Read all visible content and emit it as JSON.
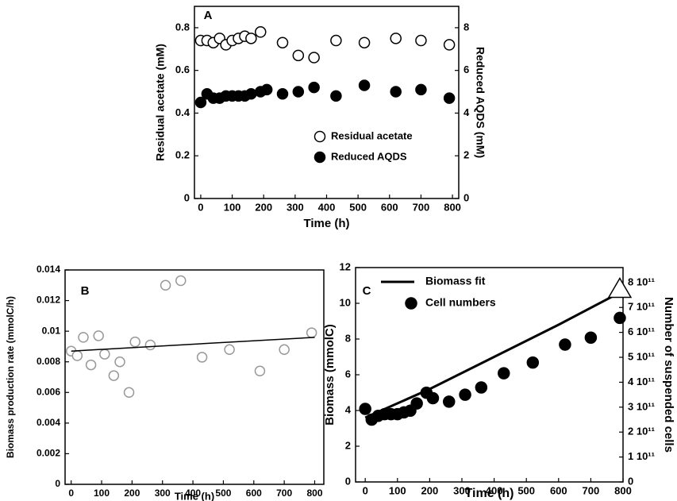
{
  "chart_data": [
    {
      "type": "scatter",
      "label": "A",
      "xlabel": "Time (h)",
      "ylabel": "Residual acetate (mM)",
      "y2label": "Reduced AQDS (mM)",
      "xlim": [
        -20,
        820
      ],
      "xticks": [
        0,
        100,
        200,
        300,
        400,
        500,
        600,
        700,
        800
      ],
      "ylim": [
        0,
        0.9
      ],
      "yticks": [
        0,
        0.2,
        0.4,
        0.6,
        0.8
      ],
      "y2lim": [
        0,
        9
      ],
      "y2ticks": [
        0,
        2,
        4,
        6,
        8
      ],
      "series": [
        {
          "name": "Residual acetate",
          "marker": "open",
          "color": "#000000",
          "x": [
            0,
            20,
            40,
            60,
            80,
            100,
            120,
            140,
            160,
            190,
            260,
            310,
            360,
            430,
            520,
            620,
            700,
            790
          ],
          "values": [
            0.74,
            0.74,
            0.73,
            0.75,
            0.72,
            0.74,
            0.75,
            0.76,
            0.75,
            0.78,
            0.73,
            0.67,
            0.66,
            0.74,
            0.73,
            0.75,
            0.74,
            0.72
          ]
        },
        {
          "name": "Reduced AQDS",
          "marker": "filled",
          "color": "#000000",
          "axis": "y2",
          "x": [
            0,
            20,
            40,
            60,
            80,
            100,
            120,
            140,
            160,
            190,
            210,
            260,
            310,
            360,
            430,
            520,
            620,
            700,
            790
          ],
          "values": [
            4.5,
            4.9,
            4.7,
            4.7,
            4.8,
            4.8,
            4.8,
            4.8,
            4.9,
            5.0,
            5.1,
            4.9,
            5.0,
            5.2,
            4.8,
            5.3,
            5.0,
            5.1,
            4.7
          ]
        }
      ]
    },
    {
      "type": "scatter",
      "label": "B",
      "xlabel": "Time (h)",
      "ylabel": "Biomass production rate (mmolC/h)",
      "xlim": [
        -20,
        830
      ],
      "xticks": [
        0,
        100,
        200,
        300,
        400,
        500,
        600,
        700,
        800
      ],
      "ylim": [
        0,
        0.014
      ],
      "yticks": [
        0,
        0.002,
        0.004,
        0.006,
        0.008,
        0.01,
        0.012,
        0.014
      ],
      "series": [
        {
          "marker": "open",
          "color": "#999999",
          "x": [
            0,
            20,
            40,
            65,
            90,
            110,
            140,
            160,
            190,
            210,
            260,
            310,
            360,
            430,
            520,
            620,
            700,
            790
          ],
          "values": [
            0.0087,
            0.0084,
            0.0096,
            0.0078,
            0.0097,
            0.0085,
            0.0071,
            0.008,
            0.006,
            0.0093,
            0.0091,
            0.013,
            0.0133,
            0.0083,
            0.0088,
            0.0074,
            0.0088,
            0.0099
          ]
        },
        {
          "marker": "line",
          "color": "#000000",
          "x": [
            0,
            800
          ],
          "values": [
            0.0087,
            0.0096
          ]
        }
      ]
    },
    {
      "type": "scatter",
      "label": "C",
      "xlabel": "Time (h)",
      "ylabel": "Biomass (mmolC)",
      "y2label": "Number of suspended cells",
      "xlim": [
        -30,
        800
      ],
      "xticks": [
        0,
        100,
        200,
        300,
        400,
        500,
        600,
        700,
        800
      ],
      "ylim": [
        0,
        12
      ],
      "yticks": [
        0,
        2,
        4,
        6,
        8,
        10,
        12
      ],
      "y2lim": [
        0,
        860000000000
      ],
      "y2ticks": [
        0,
        {
          "value": 100000000000,
          "label": "1 10¹¹"
        },
        {
          "value": 200000000000,
          "label": "2 10¹¹"
        },
        {
          "value": 300000000000,
          "label": "3 10¹¹"
        },
        {
          "value": 400000000000,
          "label": "4 10¹¹"
        },
        {
          "value": 500000000000,
          "label": "5 10¹¹"
        },
        {
          "value": 600000000000,
          "label": "6 10¹¹"
        },
        {
          "value": 700000000000,
          "label": "7 10¹¹"
        },
        {
          "value": 800000000000,
          "label": "8 10¹¹"
        }
      ],
      "series": [
        {
          "name": "Biomass fit",
          "marker": "line",
          "color": "#000000",
          "end_marker": "triangle",
          "x": [
            0,
            200,
            400,
            600,
            790
          ],
          "values": [
            3.6,
            5.2,
            7.0,
            8.8,
            10.6
          ]
        },
        {
          "name": "Cell numbers",
          "marker": "filled",
          "color": "#000000",
          "axis": "y2",
          "x": [
            0,
            20,
            40,
            60,
            80,
            100,
            120,
            140,
            160,
            190,
            210,
            260,
            310,
            360,
            430,
            520,
            620,
            700,
            790
          ],
          "values": [
            293000000000,
            250000000000,
            265000000000,
            272000000000,
            272000000000,
            272000000000,
            279000000000,
            286000000000,
            315000000000,
            358000000000,
            336000000000,
            322000000000,
            350000000000,
            379000000000,
            436000000000,
            479000000000,
            551000000000,
            579000000000,
            658000000000
          ]
        }
      ]
    }
  ]
}
